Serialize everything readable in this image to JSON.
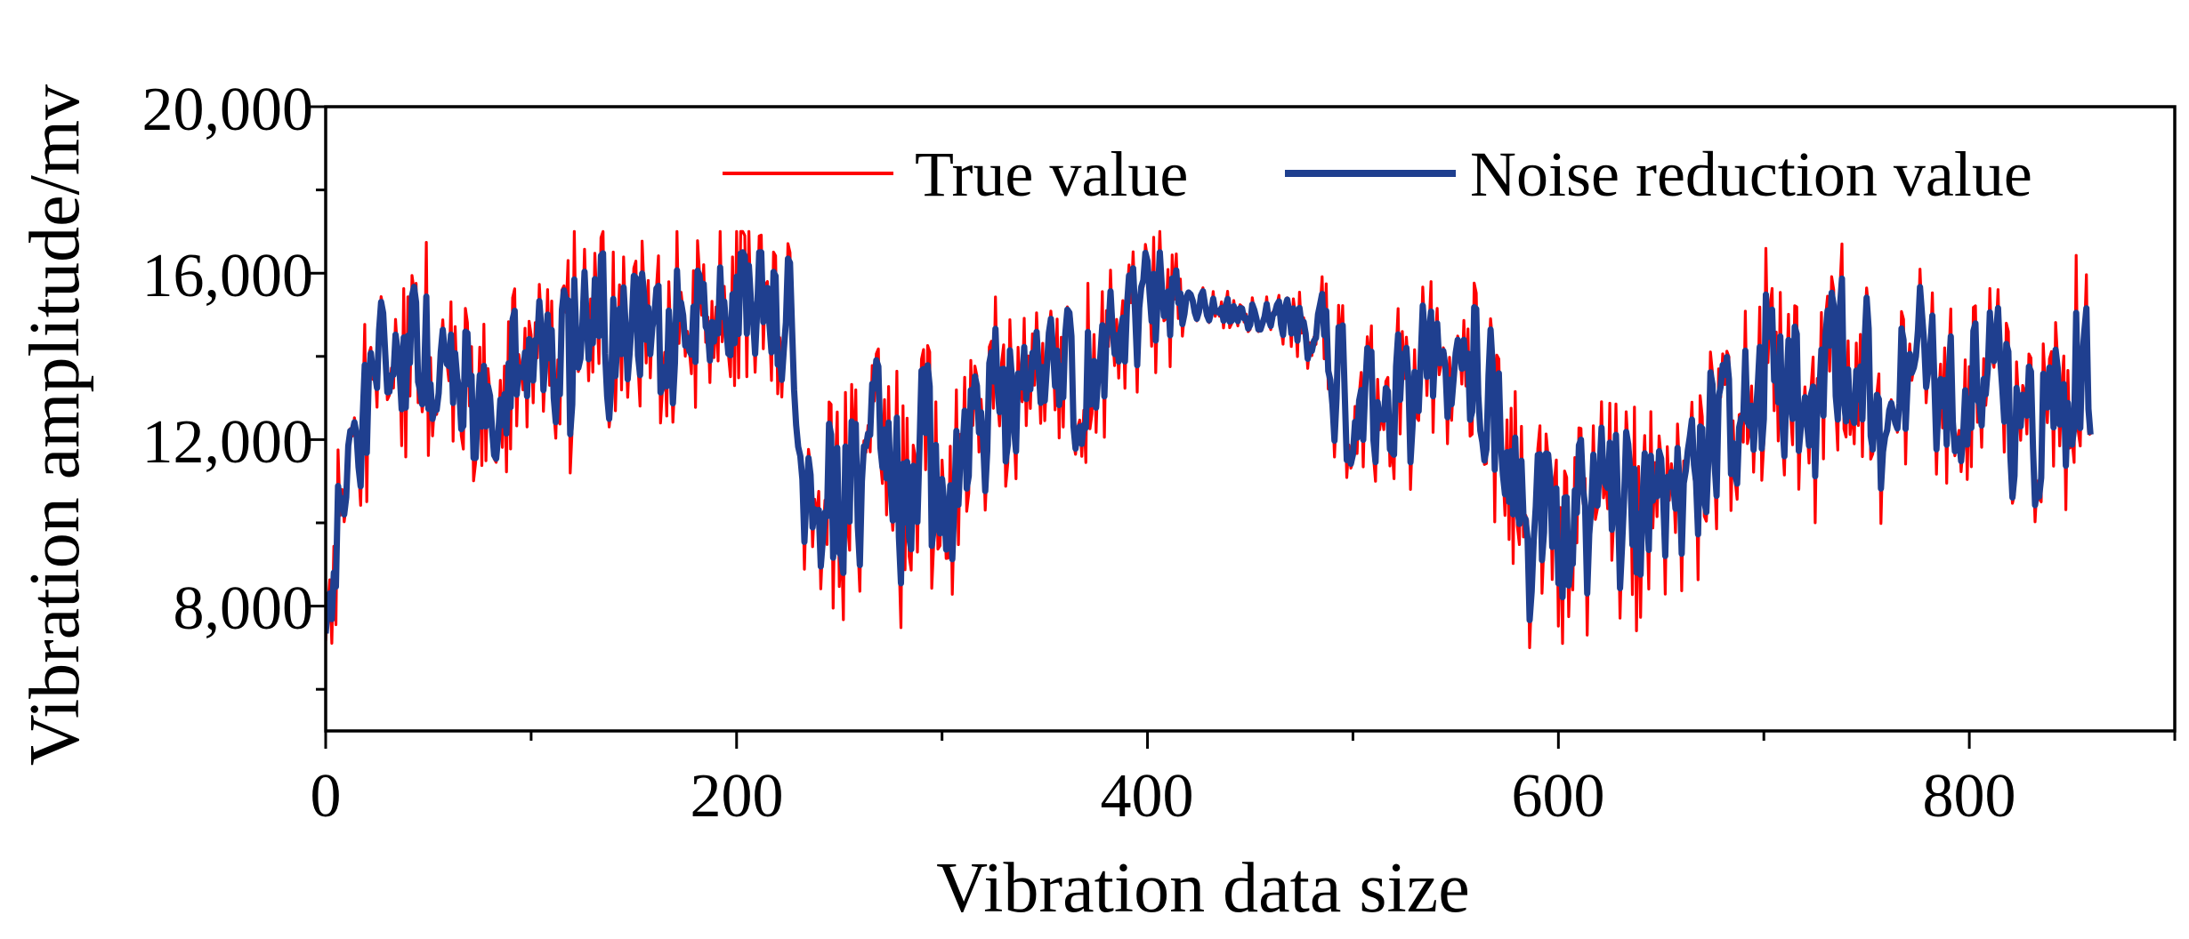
{
  "chart_data": {
    "type": "line",
    "title": "",
    "xlabel": "Vibration data size",
    "ylabel": "Vibration amplitude/mv",
    "xlim": [
      0,
      900
    ],
    "ylim": [
      5000,
      20000
    ],
    "x_ticks": [
      0,
      200,
      400,
      600,
      800
    ],
    "x_tick_labels": [
      "0",
      "200",
      "400",
      "600",
      "800"
    ],
    "y_ticks": [
      8000,
      12000,
      16000,
      20000
    ],
    "y_tick_labels": [
      "8,000",
      "12,000",
      "16,000",
      "20,000"
    ],
    "grid": false,
    "legend_position": "top-right",
    "n_points": 860,
    "colors": {
      "true_value": "#ff0000",
      "noise_reduction": "#1f3f8f",
      "axis": "#000000"
    },
    "series": [
      {
        "name": "True value",
        "key": "true_value",
        "color": "#ff0000",
        "keypoints": [
          [
            0,
            7000
          ],
          [
            10,
            11500
          ],
          [
            20,
            12500
          ],
          [
            30,
            13500
          ],
          [
            40,
            13800
          ],
          [
            60,
            13200
          ],
          [
            80,
            13000
          ],
          [
            100,
            14000
          ],
          [
            120,
            14300
          ],
          [
            140,
            14800
          ],
          [
            160,
            14500
          ],
          [
            180,
            14700
          ],
          [
            200,
            15600
          ],
          [
            220,
            15000
          ],
          [
            228,
            14800
          ],
          [
            235,
            10200
          ],
          [
            250,
            10200
          ],
          [
            270,
            11500
          ],
          [
            290,
            11800
          ],
          [
            300,
            10500
          ],
          [
            310,
            10800
          ],
          [
            320,
            12800
          ],
          [
            340,
            13500
          ],
          [
            360,
            13200
          ],
          [
            380,
            13600
          ],
          [
            400,
            15200
          ],
          [
            420,
            15300
          ],
          [
            440,
            15100
          ],
          [
            460,
            15000
          ],
          [
            480,
            14500
          ],
          [
            500,
            13000
          ],
          [
            520,
            13200
          ],
          [
            540,
            13800
          ],
          [
            560,
            13700
          ],
          [
            575,
            12000
          ],
          [
            585,
            10000
          ],
          [
            600,
            9500
          ],
          [
            620,
            10200
          ],
          [
            640,
            10000
          ],
          [
            660,
            10400
          ],
          [
            680,
            12000
          ],
          [
            700,
            13400
          ],
          [
            720,
            13300
          ],
          [
            740,
            13600
          ],
          [
            760,
            13300
          ],
          [
            780,
            13000
          ],
          [
            800,
            13200
          ],
          [
            815,
            13600
          ],
          [
            825,
            11800
          ],
          [
            840,
            12500
          ],
          [
            860,
            13900
          ]
        ],
        "amplitude": [
          [
            0,
            2400
          ],
          [
            228,
            2100
          ],
          [
            240,
            3000
          ],
          [
            310,
            2800
          ],
          [
            330,
            2400
          ],
          [
            410,
            1800
          ],
          [
            420,
            400
          ],
          [
            470,
            600
          ],
          [
            490,
            2200
          ],
          [
            560,
            2200
          ],
          [
            580,
            2500
          ],
          [
            660,
            3000
          ],
          [
            700,
            2400
          ],
          [
            860,
            2200
          ]
        ],
        "range": [
          6300,
          17000
        ]
      },
      {
        "name": "Noise reduction value",
        "key": "noise_reduction",
        "color": "#1f3f8f",
        "range": [
          7000,
          16500
        ]
      }
    ]
  }
}
